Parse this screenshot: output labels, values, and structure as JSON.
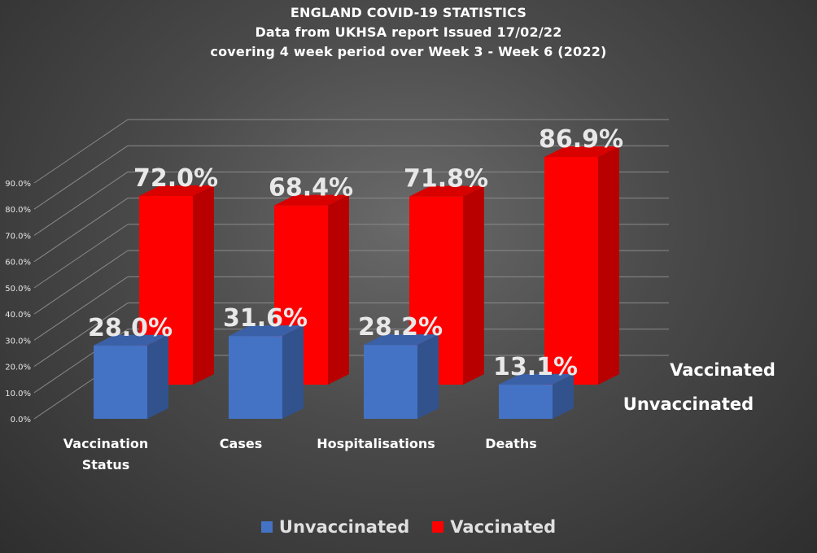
{
  "chart_data": {
    "type": "bar",
    "title": [
      "ENGLAND COVID-19 STATISTICS",
      "Data from UKHSA report Issued 17/02/22",
      "covering 4 week period over Week 3 - Week 6 (2022)"
    ],
    "categories": [
      "Vaccination Status",
      "Cases",
      "Hospitalisations",
      "Deaths"
    ],
    "category_display": [
      [
        "Vaccination",
        "Status"
      ],
      [
        "Cases"
      ],
      [
        "Hospitalisations"
      ],
      [
        "Deaths"
      ]
    ],
    "series": [
      {
        "name": "Unvaccinated",
        "values": [
          28.0,
          31.6,
          28.2,
          13.1
        ],
        "labels": [
          "28.0%",
          "31.6%",
          "28.2%",
          "13.1%"
        ],
        "color": "#4472c4"
      },
      {
        "name": "Vaccinated",
        "values": [
          72.0,
          68.4,
          71.8,
          86.9
        ],
        "labels": [
          "72.0%",
          "68.4%",
          "71.8%",
          "86.9%"
        ],
        "color": "#ff0000"
      }
    ],
    "ylim": [
      0,
      90
    ],
    "y_ticks": [
      "0.0%",
      "10.0%",
      "20.0%",
      "30.0%",
      "40.0%",
      "50.0%",
      "60.0%",
      "70.0%",
      "80.0%",
      "90.0%"
    ],
    "depth_axis_labels": [
      "Vaccinated",
      "Unvaccinated"
    ],
    "grid": true,
    "legend_position": "bottom",
    "style": "3d-column"
  }
}
